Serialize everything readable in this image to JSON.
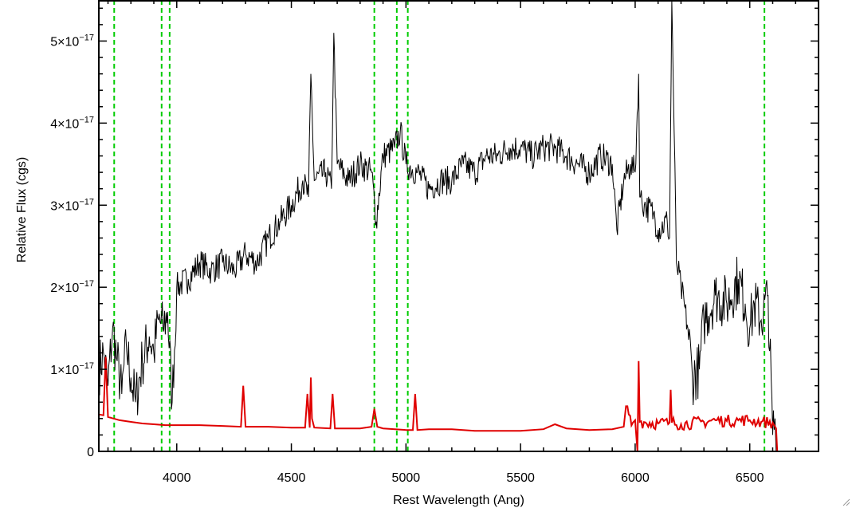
{
  "chart_data": {
    "type": "line",
    "title": "",
    "xlabel": "Rest Wavelength (Ang)",
    "ylabel": "Relative Flux (cgs)",
    "xlim": [
      3660,
      6800
    ],
    "ylim": [
      0,
      5.5e-17
    ],
    "xticks": [
      4000,
      4500,
      5000,
      5500,
      6000,
      6500
    ],
    "xtick_labels": [
      "4000",
      "4500",
      "5000",
      "5500",
      "6000",
      "6500"
    ],
    "yticks": [
      0,
      1e-17,
      2e-17,
      3e-17,
      4e-17,
      5e-17
    ],
    "ytick_labels": [
      {
        "mantissa": "0",
        "exponent": ""
      },
      {
        "mantissa": "1×10",
        "exponent": "−17"
      },
      {
        "mantissa": "2×10",
        "exponent": "−17"
      },
      {
        "mantissa": "3×10",
        "exponent": "−17"
      },
      {
        "mantissa": "4×10",
        "exponent": "−17"
      },
      {
        "mantissa": "5×10",
        "exponent": "−17"
      }
    ],
    "grid": false,
    "series": [
      {
        "color": "#000000",
        "x": [
          3660,
          3680,
          3700,
          3720,
          3740,
          3760,
          3780,
          3800,
          3820,
          3850,
          3880,
          3900,
          3920,
          3940,
          3960,
          3980,
          4000,
          4050,
          4100,
          4150,
          4200,
          4250,
          4300,
          4350,
          4400,
          4450,
          4500,
          4550,
          4575,
          4585,
          4600,
          4650,
          4675,
          4685,
          4700,
          4750,
          4800,
          4850,
          4870,
          4900,
          4950,
          4975,
          5000,
          5050,
          5100,
          5150,
          5200,
          5250,
          5300,
          5350,
          5400,
          5450,
          5500,
          5550,
          5600,
          5650,
          5700,
          5750,
          5800,
          5850,
          5900,
          5920,
          5950,
          5980,
          6000,
          6015,
          6020,
          6040,
          6080,
          6100,
          6140,
          6150,
          6160,
          6180,
          6200,
          6230,
          6250,
          6280,
          6300,
          6350,
          6400,
          6450,
          6480,
          6500,
          6520,
          6550,
          6580,
          6600,
          6610,
          6615
        ],
        "y": [
          1e-17,
          1.2e-17,
          8e-18,
          1.5e-17,
          1.1e-17,
          7e-18,
          1.3e-17,
          9e-18,
          6e-18,
          1.1e-17,
          1.4e-17,
          1.2e-17,
          1.6e-17,
          1.5e-17,
          1.7e-17,
          6e-18,
          2e-17,
          2.1e-17,
          2.3e-17,
          2.2e-17,
          2.3e-17,
          2.2e-17,
          2.4e-17,
          2.3e-17,
          2.6e-17,
          2.8e-17,
          3e-17,
          3.3e-17,
          3.1e-17,
          4.6e-17,
          3.3e-17,
          3.4e-17,
          3.2e-17,
          5.1e-17,
          3.5e-17,
          3.3e-17,
          3.5e-17,
          3.4e-17,
          2.8e-17,
          3.6e-17,
          3.7e-17,
          3.9e-17,
          3.5e-17,
          3.4e-17,
          3.2e-17,
          3.3e-17,
          3.3e-17,
          3.5e-17,
          3.4e-17,
          3.6e-17,
          3.6e-17,
          3.7e-17,
          3.7e-17,
          3.6e-17,
          3.7e-17,
          3.7e-17,
          3.6e-17,
          3.5e-17,
          3.4e-17,
          3.6e-17,
          3.5e-17,
          2.7e-17,
          3.3e-17,
          3.5e-17,
          3.4e-17,
          4.6e-17,
          3.1e-17,
          3e-17,
          2.9e-17,
          2.7e-17,
          2.8e-17,
          2.6e-17,
          5.5e-17,
          2.3e-17,
          2e-17,
          1.5e-17,
          9e-18,
          1e-17,
          1.6e-17,
          1.9e-17,
          1.8e-17,
          2.1e-17,
          1.8e-17,
          1.5e-17,
          1.8e-17,
          1.6e-17,
          1.9e-17,
          2e-18,
          4e-18,
          0.0
        ]
      },
      {
        "color": "#e00000",
        "x": [
          3660,
          3680,
          3690,
          3700,
          3750,
          3800,
          3850,
          3900,
          3950,
          4000,
          4100,
          4200,
          4280,
          4290,
          4300,
          4400,
          4500,
          4560,
          4570,
          4580,
          4585,
          4590,
          4600,
          4670,
          4680,
          4690,
          4800,
          4850,
          4862,
          4875,
          4900,
          5000,
          5030,
          5040,
          5050,
          5100,
          5200,
          5300,
          5400,
          5500,
          5600,
          5650,
          5700,
          5800,
          5900,
          5950,
          5960,
          5990,
          6000,
          6010,
          6015,
          6020,
          6100,
          6150,
          6155,
          6160,
          6200,
          6300,
          6350,
          6400,
          6450,
          6500,
          6550,
          6600,
          6615,
          6620,
          6800
        ],
        "y": [
          4.5e-18,
          4.4e-18,
          1.15e-17,
          4.2e-18,
          3.8e-18,
          3.6e-18,
          3.4e-18,
          3.3e-18,
          3.2e-18,
          3.2e-18,
          3.2e-18,
          3.1e-18,
          3e-18,
          8e-18,
          3e-18,
          3e-18,
          2.9e-18,
          2.9e-18,
          7e-18,
          2.9e-18,
          9e-18,
          4e-18,
          2.9e-18,
          2.8e-18,
          7e-18,
          2.8e-18,
          2.8e-18,
          3e-18,
          5.2e-18,
          3e-18,
          2.8e-18,
          2.6e-18,
          2.6e-18,
          7e-18,
          2.6e-18,
          2.7e-18,
          2.7e-18,
          2.5e-18,
          2.5e-18,
          2.5e-18,
          2.7e-18,
          3.3e-18,
          2.8e-18,
          2.6e-18,
          2.7e-18,
          3e-18,
          5.5e-18,
          3.5e-18,
          3.8e-18,
          0.0,
          1.1e-17,
          3.6e-18,
          3.4e-18,
          3.5e-18,
          7.5e-18,
          3.5e-18,
          3.3e-18,
          3.6e-18,
          3.8e-18,
          3.7e-18,
          3.8e-18,
          3.8e-18,
          3.6e-18,
          3.5e-18,
          2.8e-18,
          0.0,
          0.0
        ]
      }
    ],
    "vlines": {
      "color": "#00cc00",
      "style": "dashed",
      "x": [
        3727,
        3934,
        3969,
        4862,
        4960,
        5008,
        6564
      ]
    }
  }
}
